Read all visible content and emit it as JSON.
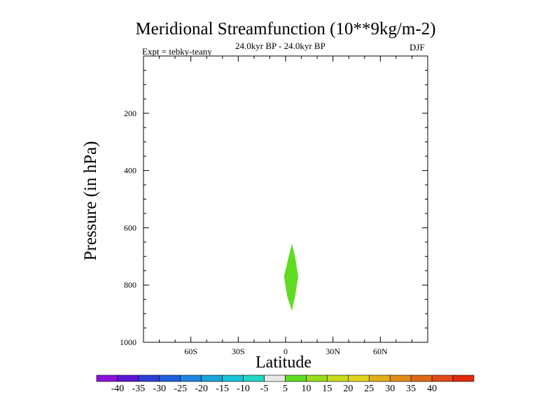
{
  "title": "Meridional Streamfunction (10**9kg/m-2)",
  "left_string": "Expt = tebky-teany",
  "center_string": "24.0kyr BP - 24.0kyr BP",
  "right_string": "DJF",
  "colors": {
    "levels": [
      "#8a12d9",
      "#5a16d4",
      "#2f3ed6",
      "#1f60dc",
      "#1f86dc",
      "#1aa6d6",
      "#19c2d6",
      "#22d6c2",
      "#e8e8e8",
      "#5fdc22",
      "#98dc1a",
      "#c8dc19",
      "#e0d21a",
      "#e0b019",
      "#e08a18",
      "#e06818",
      "#e04a16",
      "#e02a10"
    ],
    "contour_fill": "#5fdc22"
  },
  "chart_data": {
    "type": "contour",
    "title": "Meridional Streamfunction (10**9kg/m-2)",
    "xlabel": "Latitude",
    "ylabel": "Pressure (in hPa)",
    "xlim": [
      -90,
      90
    ],
    "ylim": [
      1000,
      0
    ],
    "x_ticks": [
      -60,
      -30,
      0,
      30,
      60
    ],
    "x_tick_labels": [
      "60S",
      "30S",
      "0",
      "30N",
      "60N"
    ],
    "y_ticks": [
      200,
      400,
      600,
      800,
      1000
    ],
    "y_tick_labels": [
      "200",
      "400",
      "600",
      "800",
      "1000"
    ],
    "colorbar_labels": [
      "-40",
      "-35",
      "-30",
      "-25",
      "-20",
      "-15",
      "-10",
      "-5",
      "5",
      "10",
      "15",
      "20",
      "25",
      "30",
      "35",
      "40"
    ],
    "contour_regions": [
      {
        "level_range": [
          5,
          10
        ],
        "points": [
          [
            4,
            655
          ],
          [
            2,
            700
          ],
          [
            -1,
            770
          ],
          [
            1,
            840
          ],
          [
            4,
            890
          ],
          [
            6,
            840
          ],
          [
            8,
            770
          ],
          [
            6,
            700
          ]
        ]
      }
    ]
  }
}
